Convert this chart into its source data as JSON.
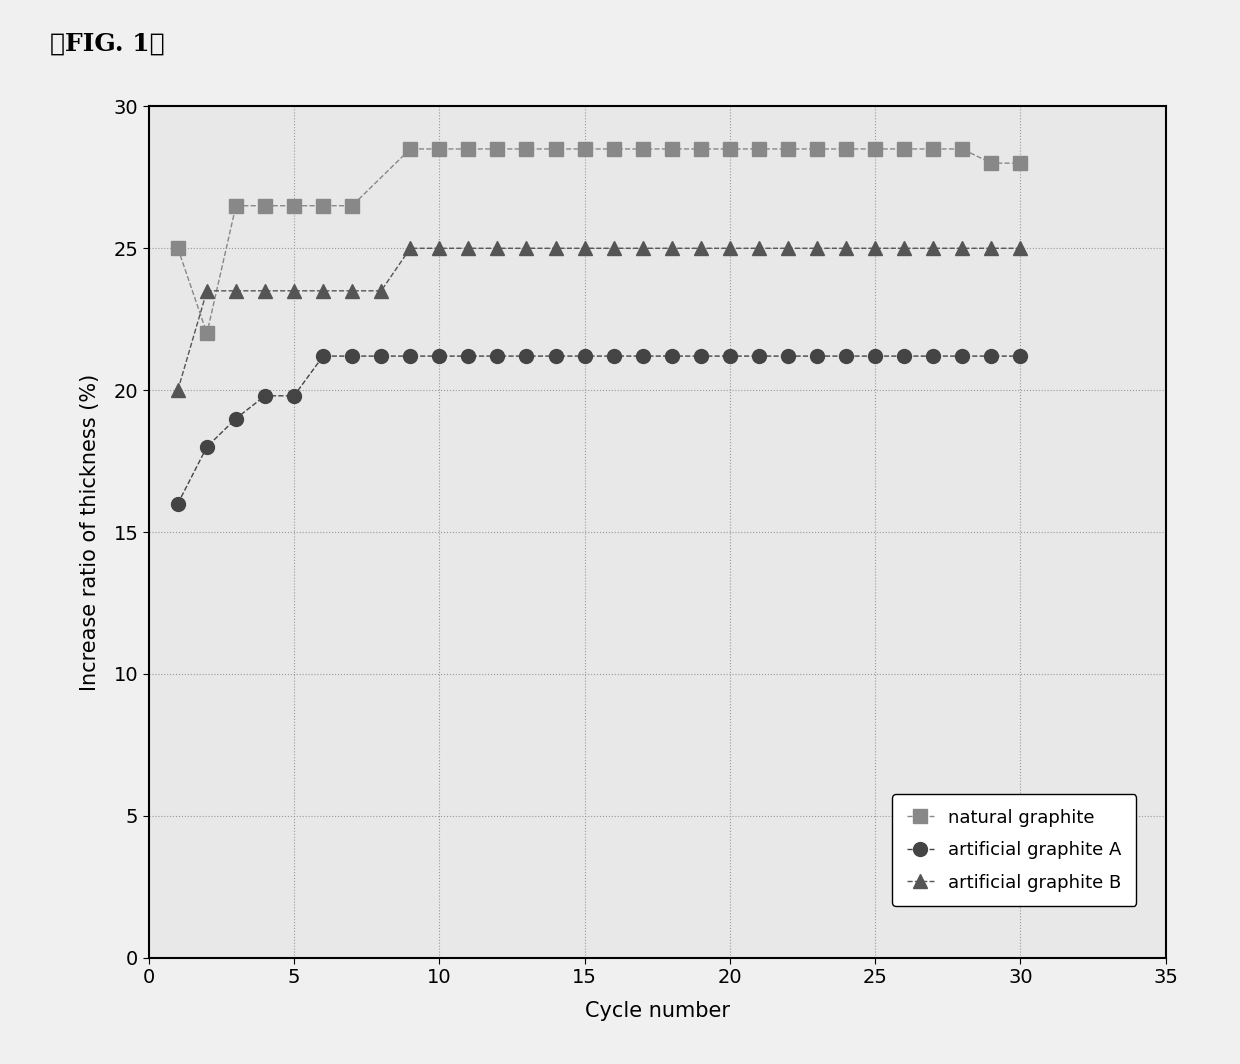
{
  "title": "』FIG. 1】",
  "xlabel": "Cycle number",
  "ylabel": "Increase ratio of thickness (%)",
  "xlim": [
    0,
    35
  ],
  "ylim": [
    0,
    30
  ],
  "xticks": [
    0,
    5,
    10,
    15,
    20,
    25,
    30,
    35
  ],
  "yticks": [
    0,
    5,
    10,
    15,
    20,
    25,
    30
  ],
  "grid_color": "#999999",
  "bg_color": "#f0f0f0",
  "plot_bg_color": "#e8e8e8",
  "natural_graphite": {
    "x": [
      1,
      2,
      3,
      4,
      5,
      6,
      7,
      9,
      10,
      11,
      12,
      13,
      14,
      15,
      16,
      17,
      18,
      19,
      20,
      21,
      22,
      23,
      24,
      25,
      26,
      27,
      28,
      29,
      30
    ],
    "y": [
      25.0,
      22.0,
      26.5,
      26.5,
      26.5,
      26.5,
      26.5,
      28.5,
      28.5,
      28.5,
      28.5,
      28.5,
      28.5,
      28.5,
      28.5,
      28.5,
      28.5,
      28.5,
      28.5,
      28.5,
      28.5,
      28.5,
      28.5,
      28.5,
      28.5,
      28.5,
      28.5,
      28.0,
      28.0
    ],
    "color": "#888888",
    "marker": "s",
    "markersize": 10,
    "label": "natural graphite",
    "linestyle": "--",
    "linewidth": 1.0
  },
  "artificial_graphite_A": {
    "x": [
      1,
      2,
      3,
      4,
      5,
      6,
      7,
      8,
      9,
      10,
      11,
      12,
      13,
      14,
      15,
      16,
      17,
      18,
      19,
      20,
      21,
      22,
      23,
      24,
      25,
      26,
      27,
      28,
      29,
      30
    ],
    "y": [
      16.0,
      18.0,
      19.0,
      19.8,
      19.8,
      21.2,
      21.2,
      21.2,
      21.2,
      21.2,
      21.2,
      21.2,
      21.2,
      21.2,
      21.2,
      21.2,
      21.2,
      21.2,
      21.2,
      21.2,
      21.2,
      21.2,
      21.2,
      21.2,
      21.2,
      21.2,
      21.2,
      21.2,
      21.2,
      21.2
    ],
    "color": "#444444",
    "marker": "o",
    "markersize": 10,
    "label": "artificial graphite A",
    "linestyle": "--",
    "linewidth": 1.0
  },
  "artificial_graphite_B": {
    "x": [
      1,
      2,
      3,
      4,
      5,
      6,
      7,
      8,
      9,
      10,
      11,
      12,
      13,
      14,
      15,
      16,
      17,
      18,
      19,
      20,
      21,
      22,
      23,
      24,
      25,
      26,
      27,
      28,
      29,
      30
    ],
    "y": [
      20.0,
      23.5,
      23.5,
      23.5,
      23.5,
      23.5,
      23.5,
      23.5,
      25.0,
      25.0,
      25.0,
      25.0,
      25.0,
      25.0,
      25.0,
      25.0,
      25.0,
      25.0,
      25.0,
      25.0,
      25.0,
      25.0,
      25.0,
      25.0,
      25.0,
      25.0,
      25.0,
      25.0,
      25.0,
      25.0
    ],
    "color": "#555555",
    "marker": "^",
    "markersize": 10,
    "label": "artificial graphite B",
    "linestyle": "--",
    "linewidth": 1.0
  },
  "fig_width": 12.4,
  "fig_height": 10.64,
  "dpi": 100
}
